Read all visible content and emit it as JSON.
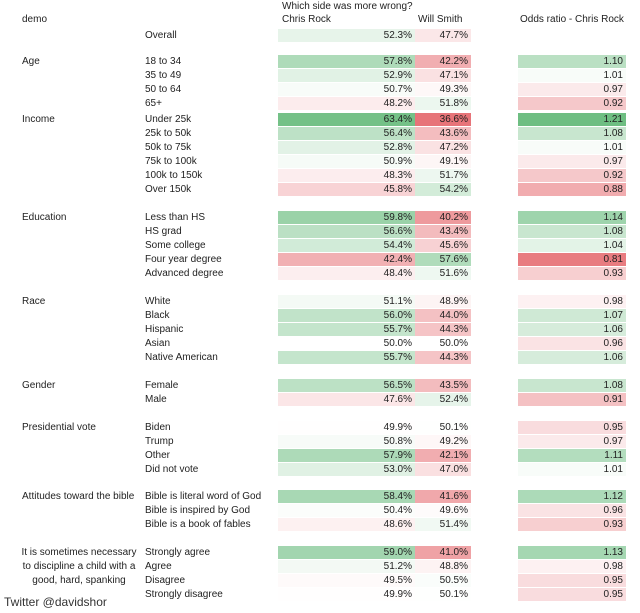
{
  "header": {
    "question": "Which side was more wrong?",
    "demo": "demo",
    "chris_rock": "Chris Rock",
    "will_smith": "Will Smith",
    "odds": "Odds ratio - Chris Rock"
  },
  "groups": [
    {
      "label": null,
      "rows": [
        [
          "Overall",
          "52.3%",
          "47.7%",
          null
        ]
      ]
    },
    {
      "label": "Age",
      "rows": [
        [
          "18 to 34",
          "57.8%",
          "42.2%",
          "1.10"
        ],
        [
          "35 to 49",
          "52.9%",
          "47.1%",
          "1.01"
        ],
        [
          "50 to 64",
          "50.7%",
          "49.3%",
          "0.97"
        ],
        [
          "65+",
          "48.2%",
          "51.8%",
          "0.92"
        ]
      ]
    },
    {
      "label": "Income",
      "rows": [
        [
          "Under 25k",
          "63.4%",
          "36.6%",
          "1.21"
        ],
        [
          "25k to 50k",
          "56.4%",
          "43.6%",
          "1.08"
        ],
        [
          "50k to 75k",
          "52.8%",
          "47.2%",
          "1.01"
        ],
        [
          "75k to 100k",
          "50.9%",
          "49.1%",
          "0.97"
        ],
        [
          "100k to 150k",
          "48.3%",
          "51.7%",
          "0.92"
        ],
        [
          "Over 150k",
          "45.8%",
          "54.2%",
          "0.88"
        ]
      ]
    },
    {
      "label": "Education",
      "rows": [
        [
          "Less than HS",
          "59.8%",
          "40.2%",
          "1.14"
        ],
        [
          "HS grad",
          "56.6%",
          "43.4%",
          "1.08"
        ],
        [
          "Some college",
          "54.4%",
          "45.6%",
          "1.04"
        ],
        [
          "Four year degree",
          "42.4%",
          "57.6%",
          "0.81"
        ],
        [
          "Advanced degree",
          "48.4%",
          "51.6%",
          "0.93"
        ]
      ]
    },
    {
      "label": "Race",
      "rows": [
        [
          "White",
          "51.1%",
          "48.9%",
          "0.98"
        ],
        [
          "Black",
          "56.0%",
          "44.0%",
          "1.07"
        ],
        [
          "Hispanic",
          "55.7%",
          "44.3%",
          "1.06"
        ],
        [
          "Asian",
          "50.0%",
          "50.0%",
          "0.96"
        ],
        [
          "Native American",
          "55.7%",
          "44.3%",
          "1.06"
        ]
      ]
    },
    {
      "label": "Gender",
      "rows": [
        [
          "Female",
          "56.5%",
          "43.5%",
          "1.08"
        ],
        [
          "Male",
          "47.6%",
          "52.4%",
          "0.91"
        ]
      ]
    },
    {
      "label": "Presidential vote",
      "rows": [
        [
          "Biden",
          "49.9%",
          "50.1%",
          "0.95"
        ],
        [
          "Trump",
          "50.8%",
          "49.2%",
          "0.97"
        ],
        [
          "Other",
          "57.9%",
          "42.1%",
          "1.11"
        ],
        [
          "Did not vote",
          "53.0%",
          "47.0%",
          "1.01"
        ]
      ]
    },
    {
      "label": "Attitudes toward the bible",
      "rows": [
        [
          "Bible is literal word of God",
          "58.4%",
          "41.6%",
          "1.12"
        ],
        [
          "Bible is inspired by God",
          "50.4%",
          "49.6%",
          "0.96"
        ],
        [
          "Bible is a book of fables",
          "48.6%",
          "51.4%",
          "0.93"
        ]
      ]
    },
    {
      "label": "It is sometimes necessary to discipline a child with a good, hard, spanking",
      "rows": [
        [
          "Strongly agree",
          "59.0%",
          "41.0%",
          "1.13"
        ],
        [
          "Agree",
          "51.2%",
          "48.8%",
          "0.98"
        ],
        [
          "Disagree",
          "49.5%",
          "50.5%",
          "0.95"
        ],
        [
          "Strongly disagree",
          "49.9%",
          "50.1%",
          "0.95"
        ]
      ]
    }
  ],
  "footer": "Twitter @davidshor"
}
